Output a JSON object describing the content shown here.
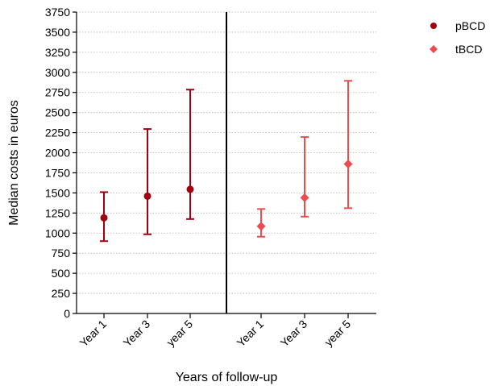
{
  "chart_data": {
    "type": "scatter",
    "title": "",
    "xlabel": "Years of follow-up",
    "ylabel": "Median costs in euros",
    "ylim": [
      0,
      3750
    ],
    "yticks": [
      0,
      250,
      500,
      750,
      1000,
      1250,
      1500,
      1750,
      2000,
      2250,
      2500,
      2750,
      3000,
      3250,
      3500,
      3750
    ],
    "grid": "horizontal dotted",
    "legend_position": "top-right outside",
    "series": [
      {
        "name": "pBCD",
        "marker": "circle",
        "color": "#a0000f",
        "categories": [
          "Year 1",
          "Year 3",
          "year 5"
        ],
        "median": [
          1190,
          1460,
          1545
        ],
        "lower": [
          900,
          985,
          1175
        ],
        "upper": [
          1510,
          2295,
          2785
        ]
      },
      {
        "name": "tBCD",
        "marker": "diamond",
        "color": "#ee4b4f",
        "categories": [
          "Year 1",
          "Year 3",
          "year 5"
        ],
        "median": [
          1085,
          1440,
          1860
        ],
        "lower": [
          955,
          1205,
          1310
        ],
        "upper": [
          1300,
          2195,
          2895
        ]
      }
    ]
  }
}
